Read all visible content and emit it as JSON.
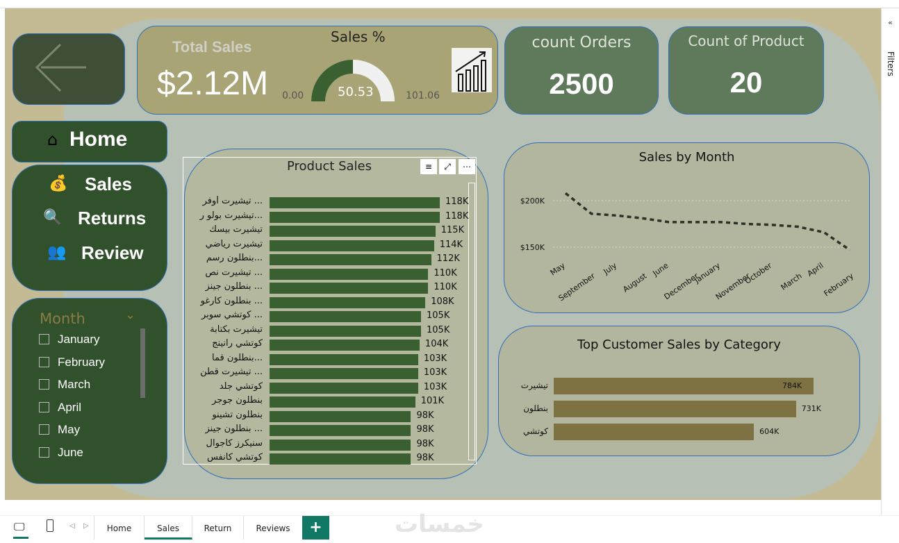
{
  "colors": {
    "canvas": "#c4bb94",
    "overlay": "#b7c0b4",
    "dark_green": "#31502c",
    "olive_card": "#a9a475",
    "count_card": "#5f7a5a",
    "bar": "#3a5f30",
    "category_bar": "#7f7242",
    "accent": "#117865"
  },
  "filters_pane": {
    "label": "Filters",
    "icon": "chevron-double-left-icon"
  },
  "back_button": {
    "icon": "arrow-left-icon"
  },
  "total_sales": {
    "label": "Total Sales",
    "value": "$2.12M"
  },
  "gauge": {
    "title": "Sales %",
    "value": "50.53",
    "min": "0.00",
    "max": "101.06",
    "fraction": 0.5
  },
  "growth_icon": "bar-chart-growth-icon",
  "count_orders": {
    "label": "count Orders",
    "value": "2500"
  },
  "count_product": {
    "label": "Count of Product",
    "value": "20"
  },
  "nav": {
    "home": "Home",
    "sales": "Sales",
    "returns": "Returns",
    "review": "Review"
  },
  "month_slicer": {
    "title": "Month",
    "items": [
      "January",
      "February",
      "March",
      "April",
      "May",
      "June"
    ]
  },
  "product_sales": {
    "title": "Product Sales",
    "rows": [
      {
        "label": "... تيشيرت أوفر",
        "value": 118,
        "text": "118K"
      },
      {
        "label": "...تيشيرت بولو ر",
        "value": 118,
        "text": "118K"
      },
      {
        "label": "تيشيرت بيسك",
        "value": 115,
        "text": "115K"
      },
      {
        "label": "تيشيرت رياضي",
        "value": 114,
        "text": "114K"
      },
      {
        "label": "...بنطلون رسم",
        "value": 112,
        "text": "112K"
      },
      {
        "label": "... تيشيرت نص",
        "value": 110,
        "text": "110K"
      },
      {
        "label": "... بنطلون جينز",
        "value": 110,
        "text": "110K"
      },
      {
        "label": "... بنطلون كارغو",
        "value": 108,
        "text": "108K"
      },
      {
        "label": "... كوتشي سوبر",
        "value": 105,
        "text": "105K"
      },
      {
        "label": "تيشيرت بكتابة",
        "value": 105,
        "text": "105K"
      },
      {
        "label": "كوتشي رانينج",
        "value": 104,
        "text": "104K"
      },
      {
        "label": "...بنطلون قما",
        "value": 103,
        "text": "103K"
      },
      {
        "label": "... تيشيرت قطن",
        "value": 103,
        "text": "103K"
      },
      {
        "label": "كوتشي جلد",
        "value": 103,
        "text": "103K"
      },
      {
        "label": "بنطلون جوجر",
        "value": 101,
        "text": "101K"
      },
      {
        "label": "بنطلون تشينو",
        "value": 98,
        "text": "98K"
      },
      {
        "label": "... بنطلون جينز",
        "value": 98,
        "text": "98K"
      },
      {
        "label": "سنيكرز كاجوال",
        "value": 98,
        "text": "98K"
      },
      {
        "label": "كوتشي كانفس",
        "value": 98,
        "text": "98K"
      }
    ]
  },
  "chart_data": [
    {
      "type": "line",
      "title": "Sales by Month",
      "categories": [
        "May",
        "September",
        "July",
        "August",
        "June",
        "December",
        "January",
        "November",
        "October",
        "March",
        "April",
        "February"
      ],
      "values": [
        208000,
        186000,
        184000,
        181000,
        177000,
        177000,
        177000,
        175000,
        174000,
        172000,
        166000,
        147000
      ],
      "yticks": [
        "$200K",
        "$150K"
      ],
      "ytick_values": [
        200000,
        150000
      ],
      "grid": true,
      "line_style": "dashed"
    },
    {
      "type": "bar",
      "orientation": "horizontal",
      "title": "Top Customer Sales by Category",
      "categories": [
        "تيشيرت",
        "بنطلون",
        "كوتشي"
      ],
      "values": [
        784,
        731,
        604
      ],
      "labels": [
        "784K",
        "731K",
        "604K"
      ]
    }
  ],
  "bottom": {
    "tabs": [
      "Home",
      "Sales",
      "Return",
      "Reviews"
    ],
    "active": "Sales",
    "add": "+",
    "watermark": "خمسات"
  }
}
